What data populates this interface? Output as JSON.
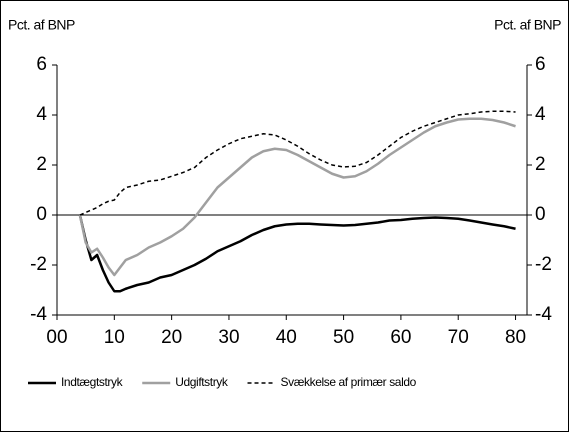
{
  "chart_data": {
    "type": "line",
    "y_label": "Pct. af BNP",
    "y2_label": "Pct. af BNP",
    "x": [
      4,
      5,
      6,
      7,
      8,
      9,
      10,
      11,
      12,
      14,
      16,
      18,
      20,
      22,
      24,
      26,
      28,
      30,
      32,
      34,
      36,
      38,
      40,
      42,
      44,
      46,
      48,
      50,
      52,
      54,
      56,
      58,
      60,
      62,
      64,
      66,
      68,
      70,
      72,
      74,
      76,
      78,
      80
    ],
    "series": [
      {
        "name": "Indtægtstryk",
        "color": "#000000",
        "dashed": false,
        "values": [
          0,
          -1.0,
          -1.8,
          -1.6,
          -2.2,
          -2.7,
          -3.05,
          -3.05,
          -2.95,
          -2.8,
          -2.7,
          -2.5,
          -2.4,
          -2.2,
          -2.0,
          -1.75,
          -1.45,
          -1.25,
          -1.05,
          -0.8,
          -0.6,
          -0.45,
          -0.38,
          -0.35,
          -0.35,
          -0.38,
          -0.4,
          -0.42,
          -0.4,
          -0.35,
          -0.3,
          -0.22,
          -0.2,
          -0.15,
          -0.12,
          -0.1,
          -0.12,
          -0.15,
          -0.22,
          -0.3,
          -0.38,
          -0.45,
          -0.55
        ]
      },
      {
        "name": "Udgiftstryk",
        "color": "#a0a0a0",
        "dashed": false,
        "values": [
          0,
          -1.1,
          -1.5,
          -1.35,
          -1.7,
          -2.1,
          -2.4,
          -2.1,
          -1.8,
          -1.6,
          -1.3,
          -1.1,
          -0.85,
          -0.55,
          -0.1,
          0.5,
          1.1,
          1.5,
          1.9,
          2.3,
          2.55,
          2.65,
          2.6,
          2.4,
          2.15,
          1.9,
          1.65,
          1.5,
          1.55,
          1.75,
          2.05,
          2.4,
          2.7,
          3.0,
          3.3,
          3.55,
          3.7,
          3.82,
          3.85,
          3.85,
          3.8,
          3.7,
          3.55
        ]
      },
      {
        "name": "Svækkelse af primær saldo",
        "color": "#000000",
        "dashed": true,
        "values": [
          0,
          0.1,
          0.2,
          0.3,
          0.45,
          0.55,
          0.6,
          0.9,
          1.1,
          1.2,
          1.35,
          1.4,
          1.55,
          1.7,
          1.9,
          2.3,
          2.6,
          2.85,
          3.05,
          3.15,
          3.25,
          3.2,
          3.0,
          2.75,
          2.45,
          2.2,
          2.0,
          1.92,
          1.95,
          2.1,
          2.4,
          2.75,
          3.1,
          3.35,
          3.55,
          3.7,
          3.85,
          4.0,
          4.05,
          4.12,
          4.15,
          4.15,
          4.12
        ]
      }
    ],
    "xlim": [
      0,
      82
    ],
    "xticks": [
      {
        "value": 0,
        "label": "00"
      },
      10,
      20,
      30,
      40,
      50,
      60,
      70,
      80
    ],
    "ylim": [
      -4,
      6
    ],
    "yticks": [
      -4,
      -2,
      0,
      2,
      4,
      6
    ],
    "y2lim": [
      -4,
      6
    ],
    "y2ticks": [
      -4,
      -2,
      0,
      2,
      4,
      6
    ],
    "zero_line": true
  }
}
